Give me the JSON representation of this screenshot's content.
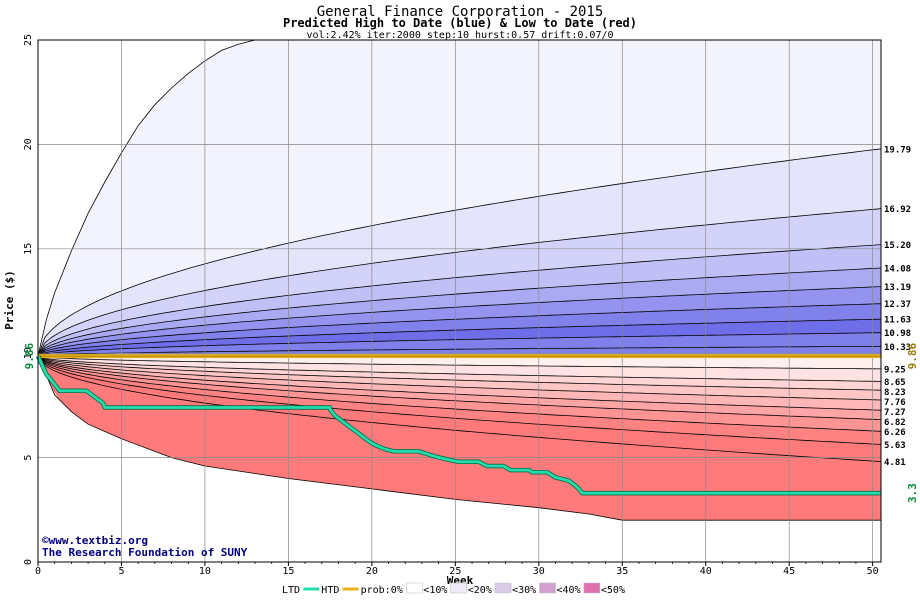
{
  "chart_data": {
    "type": "area",
    "title": "General Finance Corporation - 2015",
    "subtitle": "Predicted High to Date (blue) &  Low to Date (red)",
    "params": "vol:2.42% iter:2000 step:10 hurst:0.57 drift:0.07/0",
    "xlabel": "Week",
    "ylabel": "Price ($)",
    "xlim": [
      0,
      50.5
    ],
    "ylim": [
      0,
      25
    ],
    "x_ticks": [
      "0",
      "5",
      "10",
      "15",
      "20",
      "25",
      "30",
      "35",
      "40",
      "45",
      "50"
    ],
    "y_ticks": [
      "0",
      "5",
      "10",
      "15",
      "20",
      "25"
    ],
    "grid": true,
    "start_price": 9.86,
    "start_price_label": "9.86",
    "current_price_label": "9.86",
    "last_low_label": "3.3",
    "high_percentile_end_labels": [
      "19.79",
      "16.92",
      "15.20",
      "14.08",
      "13.19",
      "12.37",
      "11.63",
      "10.98",
      "10.33"
    ],
    "low_percentile_end_labels": [
      "9.25",
      "8.65",
      "8.23",
      "7.76",
      "7.27",
      "6.82",
      "6.26",
      "5.63",
      "4.81"
    ],
    "outer_high_envelope": {
      "x": [
        0,
        0.5,
        1,
        2,
        3,
        4,
        5,
        6,
        7,
        8,
        9,
        10,
        11,
        12,
        13,
        14,
        15
      ],
      "y": [
        9.86,
        11.6,
        12.9,
        14.9,
        16.7,
        18.2,
        19.6,
        20.9,
        21.9,
        22.7,
        23.4,
        24.0,
        24.5,
        24.8,
        25.0,
        25.0,
        25.0
      ]
    },
    "outer_low_envelope": {
      "x": [
        0,
        1,
        2,
        3,
        5,
        8,
        10,
        15,
        20,
        25,
        30,
        33,
        35,
        40,
        45,
        50.5
      ],
      "y": [
        9.86,
        8.0,
        7.2,
        6.6,
        5.9,
        5.0,
        4.6,
        4.0,
        3.5,
        3.0,
        2.6,
        2.3,
        2.0,
        2.0,
        2.0,
        2.0
      ]
    },
    "ltd_series": {
      "name": "LTD",
      "x": [
        0,
        0.5,
        1,
        1.3,
        1.4,
        2.9,
        3.4,
        3.9,
        4,
        17.5,
        17.5,
        17.8,
        18.3,
        18.8,
        19.3,
        19.8,
        20.2,
        20.8,
        21.3,
        22.8,
        23.2,
        23.8,
        24.6,
        25.2,
        26.4,
        26.9,
        27.9,
        28.3,
        29.4,
        29.6,
        30.5,
        31,
        31.8,
        32.2,
        32.4,
        32.6,
        50.5
      ],
      "y": [
        9.86,
        9.0,
        8.5,
        8.2,
        8.2,
        8.2,
        7.9,
        7.6,
        7.4,
        7.4,
        7.3,
        7.0,
        6.7,
        6.4,
        6.1,
        5.8,
        5.6,
        5.4,
        5.3,
        5.3,
        5.2,
        5.05,
        4.9,
        4.8,
        4.8,
        4.6,
        4.6,
        4.4,
        4.4,
        4.3,
        4.3,
        4.05,
        3.9,
        3.65,
        3.5,
        3.3,
        3.3
      ]
    },
    "htd_value": 9.86,
    "legend": {
      "placement": "bottom",
      "items": [
        {
          "label": "LTD",
          "kind": "label"
        },
        {
          "label": "HTD",
          "kind": "line",
          "color": "#22ddaa"
        },
        {
          "label": "prob:0%",
          "kind": "line",
          "color": "#e8b21a"
        },
        {
          "label": "<10%",
          "kind": "swatch",
          "color": "#ffffff"
        },
        {
          "label": "<20%",
          "kind": "swatch",
          "color": "#eeeaf8"
        },
        {
          "label": "<30%",
          "kind": "swatch",
          "color": "#d8cce8"
        },
        {
          "label": "<40%",
          "kind": "swatch",
          "color": "#d2a0d0"
        },
        {
          "label": "<50%",
          "kind": "swatch",
          "color": "#e070b0"
        }
      ]
    },
    "watermark": {
      "line1": "©www.textbiz.org",
      "line2": "The Research Foundation of SUNY"
    },
    "colors": {
      "high_bands": [
        "#f3f3fd",
        "#e4e4fb",
        "#d3d3f9",
        "#c0c0f6",
        "#aaaaf3",
        "#9494f0",
        "#8181ec",
        "#6e6ee9",
        "#8080ec"
      ],
      "low_bands": [
        "#fff0f0",
        "#ffe3e3",
        "#ffd5d5",
        "#ffc6c6",
        "#ffb6b6",
        "#ffa5a5",
        "#ff9494",
        "#ff8383",
        "#ff7a7a"
      ],
      "ltd_line": "#22ddaa",
      "htd_line": "#e8b21a",
      "label_green": "#0a8a3a",
      "label_olive": "#9a7a00",
      "grid": "#888888",
      "watermark_text": "#000080"
    }
  }
}
